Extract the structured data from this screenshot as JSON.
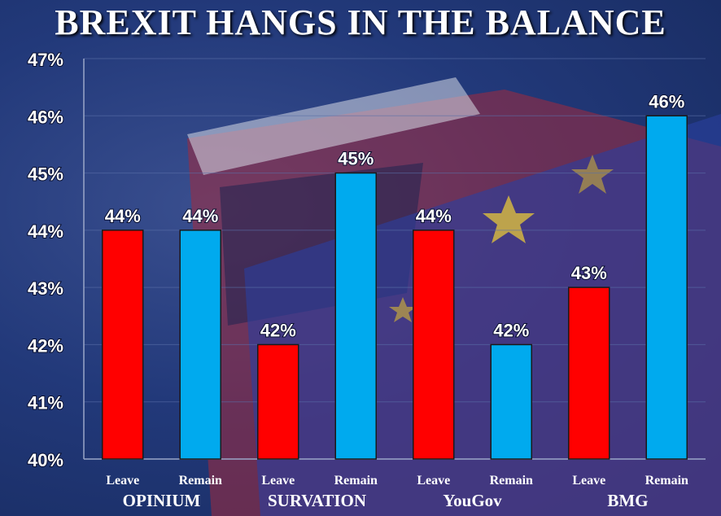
{
  "chart_data": {
    "type": "bar",
    "title": "BREXIT HANGS IN THE BALANCE",
    "ylim": [
      40,
      47
    ],
    "y_ticks": [
      "40%",
      "41%",
      "42%",
      "43%",
      "44%",
      "45%",
      "46%",
      "47%"
    ],
    "grid": true,
    "colors": {
      "Leave": "#ff0000",
      "Remain": "#00aaee"
    },
    "groups": [
      {
        "pollster": "OPINIUM",
        "bars": [
          {
            "label": "Leave",
            "value": 44,
            "text": "44%"
          },
          {
            "label": "Remain",
            "value": 44,
            "text": "44%"
          }
        ]
      },
      {
        "pollster": "SURVATION",
        "bars": [
          {
            "label": "Leave",
            "value": 42,
            "text": "42%"
          },
          {
            "label": "Remain",
            "value": 45,
            "text": "45%"
          }
        ]
      },
      {
        "pollster": "YouGov",
        "bars": [
          {
            "label": "Leave",
            "value": 44,
            "text": "44%"
          },
          {
            "label": "Remain",
            "value": 42,
            "text": "42%"
          }
        ]
      },
      {
        "pollster": "BMG",
        "bars": [
          {
            "label": "Leave",
            "value": 43,
            "text": "43%"
          },
          {
            "label": "Remain",
            "value": 46,
            "text": "46%"
          }
        ]
      }
    ]
  }
}
